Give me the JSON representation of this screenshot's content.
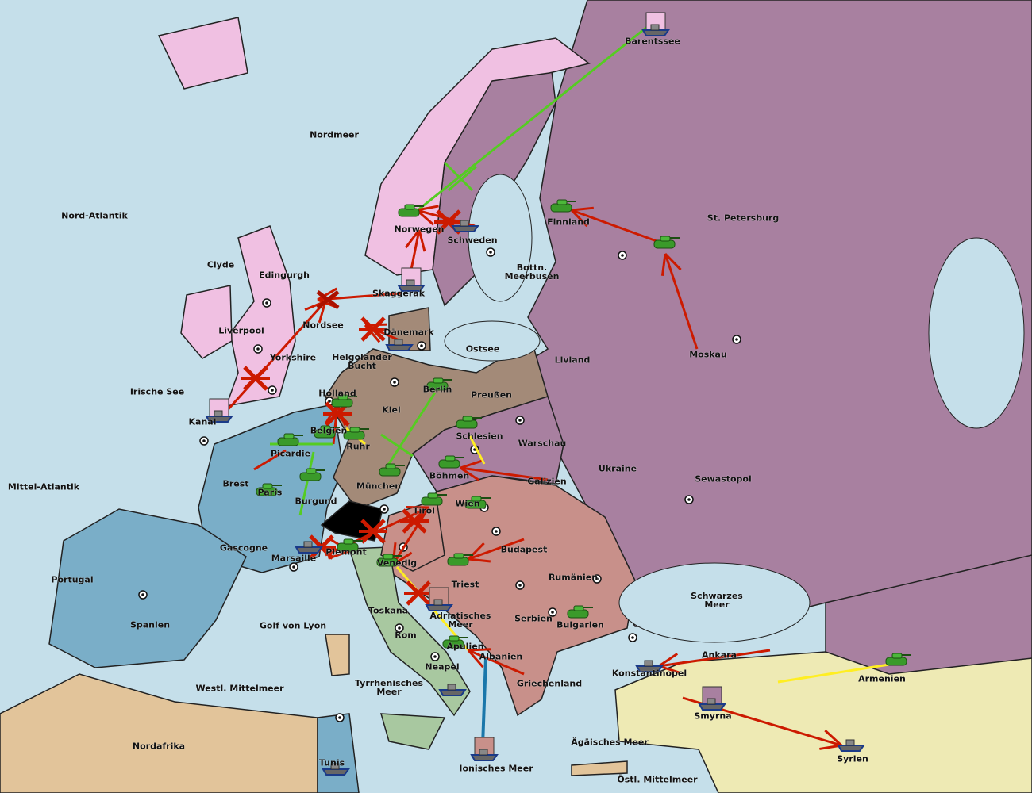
{
  "colors": {
    "sea": "#c5dfea",
    "england": "#f0c0e2",
    "france": "#7aaec8",
    "germany": "#a38a78",
    "austria": "#c8908a",
    "russia": "#a880a0",
    "italy": "#a8c8a0",
    "turkey": "#eeeab4",
    "neutral": "#e2c49a",
    "switzerland": "#000000",
    "move_order": "#cc1a00",
    "support_order": "#55cc22",
    "support_hold": "#ffee22",
    "convoy": "#1a77aa"
  },
  "provinces": [
    "Barentssee",
    "Nordmeer",
    "Nord-Atlantik",
    "Norwegen",
    "Schweden",
    "Finnland",
    "St. Petersburg",
    "Bottn. Meerbusen",
    "Clyde",
    "Edingurgh",
    "Skaggerak",
    "Liverpool",
    "Nordsee",
    "Dänemark",
    "Ostsee",
    "Yorkshire",
    "Helgoländer Bucht",
    "Livland",
    "Moskau",
    "Irische See",
    "Holland",
    "Berlin",
    "Preußen",
    "Kiel",
    "Kanal",
    "Belgien",
    "Schlesien",
    "Ruhr",
    "Warschau",
    "Picardie",
    "Ukraine",
    "Mittel-Atlantik",
    "Brest",
    "Böhmen",
    "Galizien",
    "Sewastopol",
    "München",
    "Paris",
    "Burgund",
    "Wien",
    "Tirol",
    "Budapest",
    "Gascogne",
    "Piemont",
    "Marsaille",
    "Venedig",
    "Portugal",
    "Rumänien",
    "Triest",
    "Schwarzes Meer",
    "Toskana",
    "Adriatisches Meer",
    "Serbien",
    "Spanien",
    "Golf von Lyon",
    "Bulgarien",
    "Rom",
    "Apulien",
    "Ankara",
    "Albanien",
    "Konstantinopel",
    "Armenien",
    "Neapel",
    "Westl. Mittelmeer",
    "Tyrrhenisches Meer",
    "Griechenland",
    "Smyrna",
    "Nordafrika",
    "Ägäisches Meer",
    "Tunis",
    "Syrien",
    "Ionisches Meer",
    "Östl. Mittelmeer"
  ],
  "units": [
    {
      "type": "fleet",
      "at": "Barentssee",
      "icon": "ship-icon"
    },
    {
      "type": "army",
      "at": "Norwegen",
      "icon": "tank-icon"
    },
    {
      "type": "fleet",
      "at": "Schweden",
      "icon": "ship-icon"
    },
    {
      "type": "army",
      "at": "Finnland",
      "icon": "tank-icon"
    },
    {
      "type": "army",
      "at": "St. Petersburg",
      "icon": "tank-icon"
    },
    {
      "type": "fleet",
      "at": "Skaggerak",
      "icon": "ship-icon"
    },
    {
      "type": "fleet",
      "at": "Dänemark",
      "icon": "ship-icon"
    },
    {
      "type": "fleet",
      "at": "Kanal",
      "icon": "ship-icon"
    },
    {
      "type": "army",
      "at": "Holland",
      "icon": "tank-icon"
    },
    {
      "type": "army",
      "at": "Berlin",
      "icon": "tank-icon"
    },
    {
      "type": "army",
      "at": "Belgien",
      "icon": "tank-icon"
    },
    {
      "type": "army",
      "at": "Ruhr",
      "icon": "tank-icon"
    },
    {
      "type": "army",
      "at": "Schlesien",
      "icon": "tank-icon"
    },
    {
      "type": "army",
      "at": "Picardie",
      "icon": "tank-icon"
    },
    {
      "type": "army",
      "at": "Böhmen",
      "icon": "tank-icon"
    },
    {
      "type": "army",
      "at": "München",
      "icon": "tank-icon"
    },
    {
      "type": "army",
      "at": "Paris",
      "icon": "tank-icon"
    },
    {
      "type": "army",
      "at": "Burgund",
      "icon": "tank-icon"
    },
    {
      "type": "army",
      "at": "Tirol",
      "icon": "tank-icon"
    },
    {
      "type": "army",
      "at": "Wien",
      "icon": "tank-icon"
    },
    {
      "type": "fleet",
      "at": "Marsaille",
      "icon": "ship-icon"
    },
    {
      "type": "army",
      "at": "Piemont",
      "icon": "tank-icon"
    },
    {
      "type": "army",
      "at": "Venedig",
      "icon": "tank-icon"
    },
    {
      "type": "army",
      "at": "Triest",
      "icon": "tank-icon"
    },
    {
      "type": "fleet",
      "at": "Adriatisches Meer",
      "icon": "ship-icon"
    },
    {
      "type": "army",
      "at": "Bulgarien",
      "icon": "tank-icon"
    },
    {
      "type": "army",
      "at": "Apulien",
      "icon": "tank-icon"
    },
    {
      "type": "fleet",
      "at": "Neapel",
      "icon": "ship-icon"
    },
    {
      "type": "fleet",
      "at": "Konstantinopel",
      "icon": "ship-icon"
    },
    {
      "type": "fleet",
      "at": "Smyrna",
      "icon": "ship-icon"
    },
    {
      "type": "army",
      "at": "Armenien",
      "icon": "tank-icon"
    },
    {
      "type": "fleet",
      "at": "Syrien",
      "icon": "ship-icon"
    },
    {
      "type": "fleet",
      "at": "Ionisches Meer",
      "icon": "ship-icon"
    },
    {
      "type": "fleet",
      "at": "Tunis",
      "icon": "ship-icon"
    }
  ]
}
